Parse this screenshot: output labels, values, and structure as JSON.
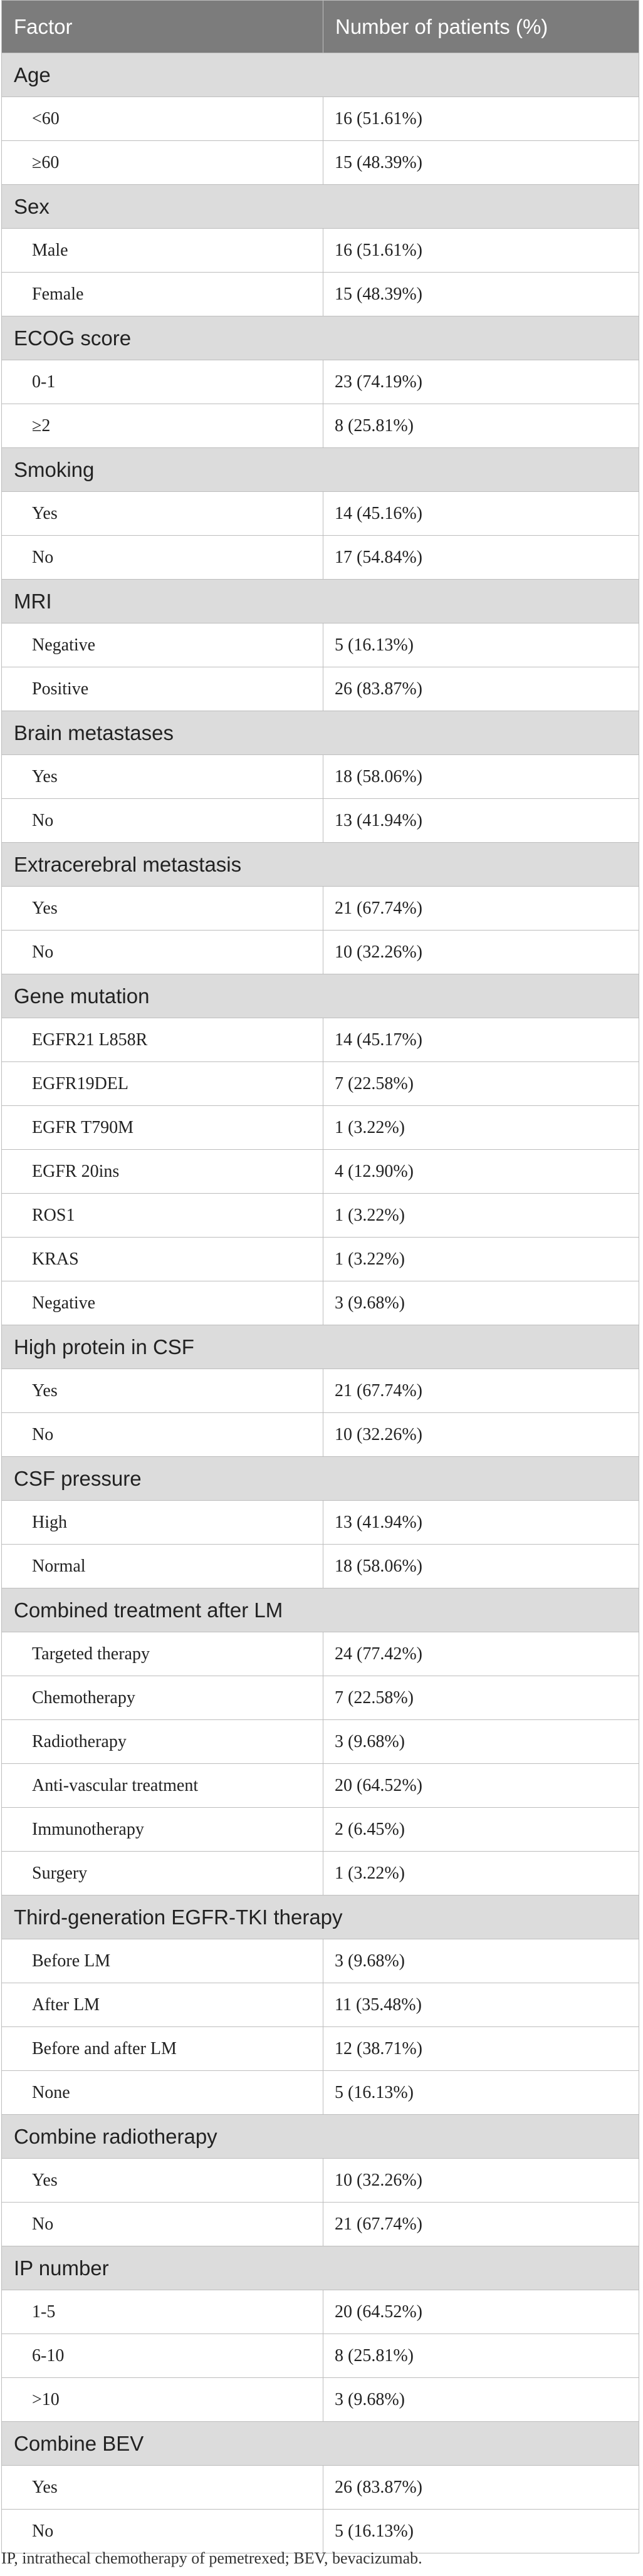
{
  "table": {
    "header": {
      "factor": "Factor",
      "patients": "Number of patients (%)"
    },
    "groups": [
      {
        "name": "Age",
        "rows": [
          {
            "label": "<60",
            "value": "16 (51.61%)"
          },
          {
            "label": "≥60",
            "value": "15 (48.39%)"
          }
        ]
      },
      {
        "name": "Sex",
        "rows": [
          {
            "label": "Male",
            "value": "16 (51.61%)"
          },
          {
            "label": "Female",
            "value": "15 (48.39%)"
          }
        ]
      },
      {
        "name": "ECOG score",
        "rows": [
          {
            "label": "0-1",
            "value": "23 (74.19%)"
          },
          {
            "label": "≥2",
            "value": "8 (25.81%)"
          }
        ]
      },
      {
        "name": "Smoking",
        "rows": [
          {
            "label": "Yes",
            "value": "14 (45.16%)"
          },
          {
            "label": "No",
            "value": "17 (54.84%)"
          }
        ]
      },
      {
        "name": "MRI",
        "rows": [
          {
            "label": "Negative",
            "value": "5 (16.13%)"
          },
          {
            "label": "Positive",
            "value": "26 (83.87%)"
          }
        ]
      },
      {
        "name": "Brain metastases",
        "rows": [
          {
            "label": "Yes",
            "value": "18 (58.06%)"
          },
          {
            "label": "No",
            "value": "13 (41.94%)"
          }
        ]
      },
      {
        "name": "Extracerebral metastasis",
        "rows": [
          {
            "label": "Yes",
            "value": "21 (67.74%)"
          },
          {
            "label": "No",
            "value": "10 (32.26%)"
          }
        ]
      },
      {
        "name": "Gene mutation",
        "rows": [
          {
            "label": "EGFR21 L858R",
            "value": "14 (45.17%)"
          },
          {
            "label": "EGFR19DEL",
            "value": "7 (22.58%)"
          },
          {
            "label": "EGFR T790M",
            "value": "1 (3.22%)"
          },
          {
            "label": "EGFR 20ins",
            "value": "4 (12.90%)"
          },
          {
            "label": "ROS1",
            "value": "1 (3.22%)"
          },
          {
            "label": "KRAS",
            "value": "1 (3.22%)"
          },
          {
            "label": "Negative",
            "value": "3 (9.68%)"
          }
        ]
      },
      {
        "name": "High protein in CSF",
        "rows": [
          {
            "label": "Yes",
            "value": "21 (67.74%)"
          },
          {
            "label": "No",
            "value": "10 (32.26%)"
          }
        ]
      },
      {
        "name": "CSF pressure",
        "rows": [
          {
            "label": "High",
            "value": "13 (41.94%)"
          },
          {
            "label": "Normal",
            "value": "18 (58.06%)"
          }
        ]
      },
      {
        "name": "Combined treatment after LM",
        "rows": [
          {
            "label": "Targeted therapy",
            "value": "24 (77.42%)"
          },
          {
            "label": "Chemotherapy",
            "value": "7 (22.58%)"
          },
          {
            "label": "Radiotherapy",
            "value": "3 (9.68%)"
          },
          {
            "label": "Anti-vascular treatment",
            "value": "20 (64.52%)"
          },
          {
            "label": "Immunotherapy",
            "value": "2 (6.45%)"
          },
          {
            "label": "Surgery",
            "value": "1 (3.22%)"
          }
        ]
      },
      {
        "name": "Third-generation EGFR-TKI therapy",
        "rows": [
          {
            "label": "Before LM",
            "value": "3 (9.68%)"
          },
          {
            "label": "After LM",
            "value": "11 (35.48%)"
          },
          {
            "label": "Before and after LM",
            "value": "12 (38.71%)"
          },
          {
            "label": "None",
            "value": "5 (16.13%)"
          }
        ]
      },
      {
        "name": "Combine radiotherapy",
        "rows": [
          {
            "label": "Yes",
            "value": "10 (32.26%)"
          },
          {
            "label": "No",
            "value": "21 (67.74%)"
          }
        ]
      },
      {
        "name": "IP number",
        "rows": [
          {
            "label": "1-5",
            "value": "20 (64.52%)"
          },
          {
            "label": "6-10",
            "value": "8 (25.81%)"
          },
          {
            "label": ">10",
            "value": "3 (9.68%)"
          }
        ]
      },
      {
        "name": "Combine BEV",
        "rows": [
          {
            "label": "Yes",
            "value": "26 (83.87%)"
          },
          {
            "label": "No",
            "value": "5 (16.13%)"
          }
        ]
      }
    ]
  },
  "footnote": "IP, intrathecal chemotherapy of pemetrexed; BEV, bevacizumab."
}
